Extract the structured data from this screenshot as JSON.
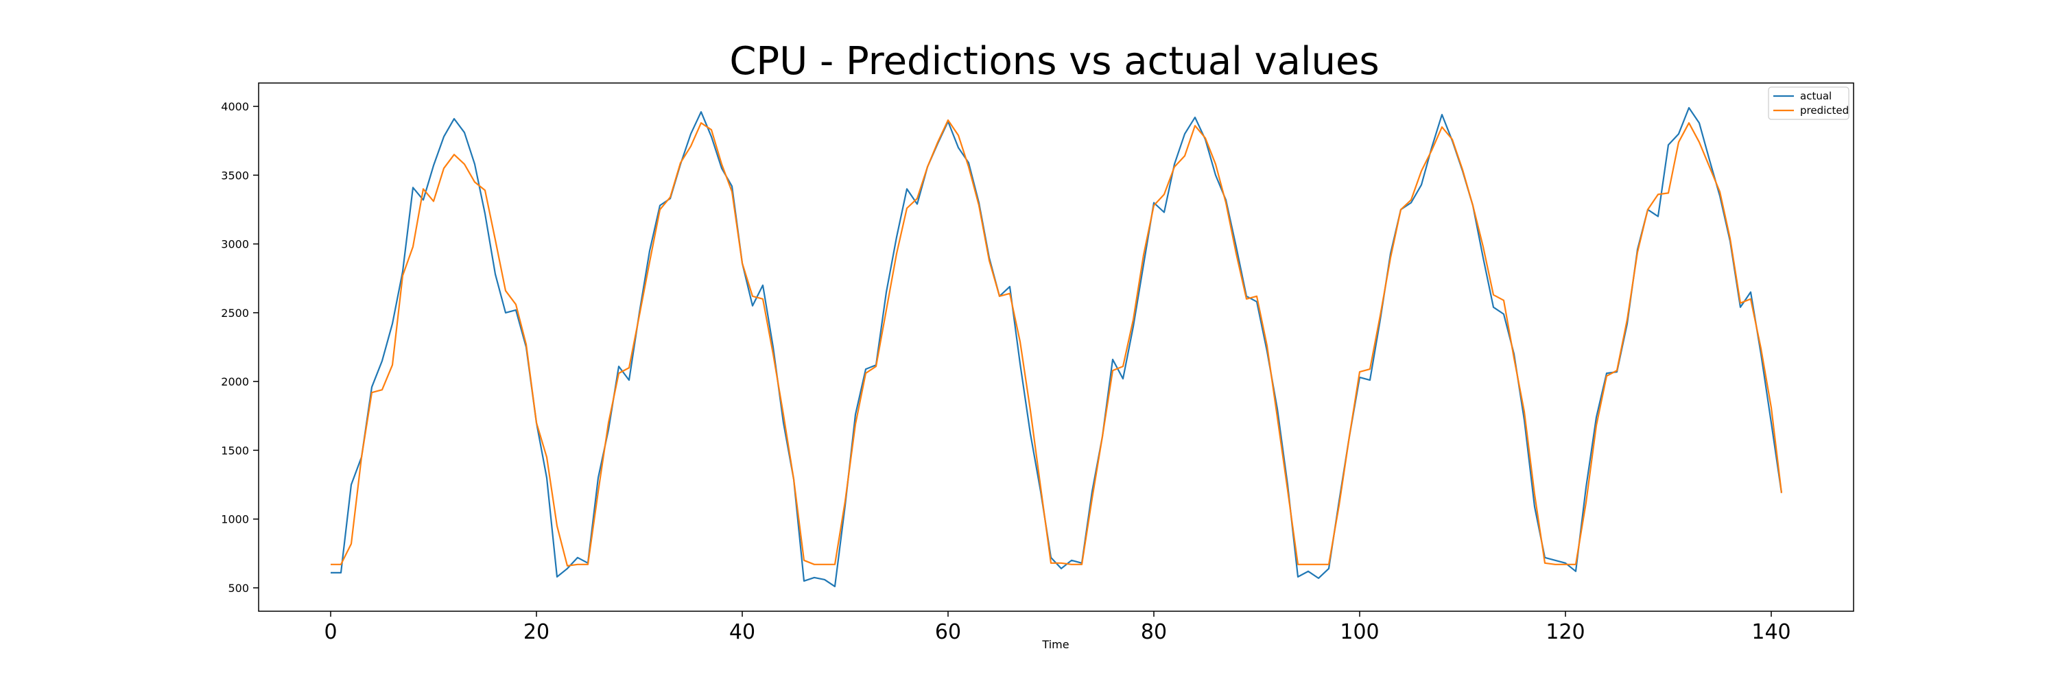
{
  "chart_data": {
    "type": "line",
    "title": "CPU - Predictions vs actual values",
    "xlabel": "Time",
    "ylabel": "",
    "xlim": [
      -7,
      148
    ],
    "ylim": [
      330,
      4170
    ],
    "xticks": [
      0,
      20,
      40,
      60,
      80,
      100,
      120,
      140
    ],
    "yticks": [
      500,
      1000,
      1500,
      2000,
      2500,
      3000,
      3500,
      4000
    ],
    "grid": false,
    "legend": {
      "placement": "top-right",
      "entries": [
        "actual",
        "predicted"
      ]
    },
    "series": [
      {
        "name": "actual",
        "color": "#1f77b4",
        "x_start": 0,
        "values": [
          610,
          610,
          1250,
          1450,
          1960,
          2150,
          2420,
          2800,
          3410,
          3320,
          3570,
          3780,
          3910,
          3810,
          3580,
          3220,
          2780,
          2500,
          2520,
          2250,
          1700,
          1300,
          580,
          640,
          720,
          680,
          1300,
          1650,
          2110,
          2010,
          2500,
          2950,
          3280,
          3330,
          3580,
          3800,
          3960,
          3780,
          3550,
          3420,
          2860,
          2550,
          2700,
          2250,
          1700,
          1290,
          550,
          575,
          560,
          510,
          1100,
          1760,
          2090,
          2120,
          2650,
          3050,
          3400,
          3290,
          3560,
          3730,
          3890,
          3700,
          3590,
          3300,
          2900,
          2620,
          2690,
          2130,
          1620,
          1200,
          720,
          640,
          700,
          680,
          1200,
          1600,
          2160,
          2020,
          2400,
          2850,
          3300,
          3230,
          3580,
          3800,
          3920,
          3760,
          3500,
          3320,
          2980,
          2620,
          2580,
          2220,
          1800,
          1250,
          580,
          620,
          570,
          640,
          1130,
          1600,
          2030,
          2010,
          2450,
          2930,
          3250,
          3300,
          3430,
          3700,
          3940,
          3750,
          3530,
          3280,
          2900,
          2540,
          2490,
          2200,
          1720,
          1090,
          720,
          700,
          680,
          620,
          1230,
          1740,
          2060,
          2070,
          2420,
          2960,
          3250,
          3200,
          3720,
          3800,
          3990,
          3880,
          3610,
          3350,
          3020,
          2540,
          2650,
          2200,
          1700,
          1190
        ],
        "values_comment": ""
      },
      {
        "name": "predicted",
        "color": "#ff7f0e",
        "x_start": 0,
        "values": [
          670,
          670,
          820,
          1450,
          1920,
          1940,
          2120,
          2770,
          2980,
          3400,
          3310,
          3550,
          3650,
          3580,
          3450,
          3390,
          3030,
          2660,
          2560,
          2270,
          1700,
          1450,
          950,
          660,
          670,
          670,
          1200,
          1700,
          2060,
          2100,
          2480,
          2870,
          3250,
          3340,
          3590,
          3710,
          3880,
          3830,
          3580,
          3380,
          2860,
          2620,
          2600,
          2200,
          1760,
          1290,
          700,
          670,
          670,
          670,
          1130,
          1690,
          2060,
          2110,
          2520,
          2930,
          3260,
          3330,
          3560,
          3740,
          3900,
          3790,
          3560,
          3280,
          2880,
          2620,
          2640,
          2290,
          1790,
          1230,
          680,
          680,
          670,
          670,
          1150,
          1600,
          2080,
          2110,
          2450,
          2920,
          3280,
          3360,
          3560,
          3640,
          3860,
          3770,
          3580,
          3300,
          2930,
          2600,
          2620,
          2260,
          1740,
          1210,
          670,
          670,
          670,
          670,
          1100,
          1600,
          2070,
          2090,
          2480,
          2900,
          3250,
          3320,
          3530,
          3680,
          3850,
          3760,
          3540,
          3280,
          2980,
          2630,
          2590,
          2170,
          1780,
          1180,
          680,
          670,
          670,
          670,
          1120,
          1680,
          2040,
          2080,
          2450,
          2940,
          3250,
          3360,
          3370,
          3740,
          3880,
          3740,
          3560,
          3380,
          3040,
          2570,
          2600,
          2240,
          1810,
          1190
        ],
        "values_comment": ""
      }
    ]
  }
}
